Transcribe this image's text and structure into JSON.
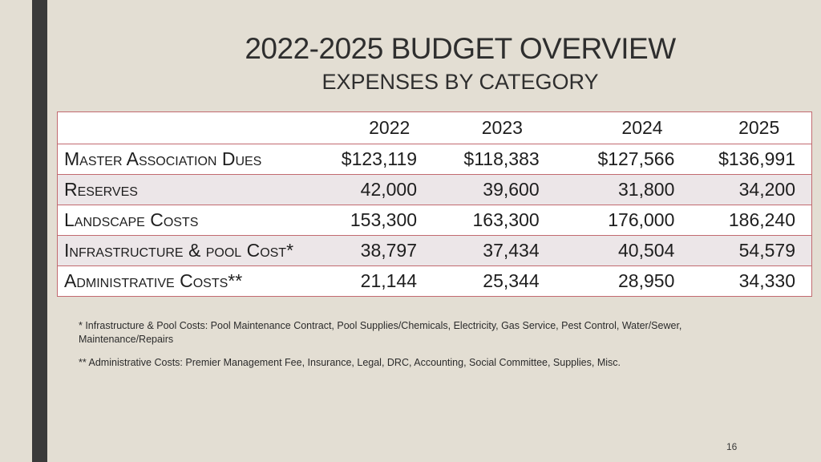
{
  "slide": {
    "title": "2022-2025 BUDGET OVERVIEW",
    "subtitle": "EXPENSES BY CATEGORY",
    "page_number": "16"
  },
  "table": {
    "columns": [
      "",
      "2022",
      "2023",
      "2024",
      "2025"
    ],
    "rows": [
      {
        "label": "Master Association Dues",
        "values": [
          "$123,119",
          "$118,383",
          "$127,566",
          "$136,991"
        ]
      },
      {
        "label": "Reserves",
        "values": [
          "42,000",
          "39,600",
          "31,800",
          "34,200"
        ]
      },
      {
        "label": "Landscape Costs",
        "values": [
          "153,300",
          "163,300",
          "176,000",
          "186,240"
        ]
      },
      {
        "label": "Infrastructure & pool Cost*",
        "values": [
          "38,797",
          "37,434",
          "40,504",
          "54,579"
        ]
      },
      {
        "label": "Administrative Costs**",
        "values": [
          "21,144",
          "25,344",
          "28,950",
          "34,330"
        ]
      }
    ],
    "border_color": "#c26a70"
  },
  "footnotes": {
    "infrastructure": "* Infrastructure & Pool Costs:  Pool Maintenance Contract, Pool Supplies/Chemicals, Electricity, Gas Service, Pest Control, Water/Sewer, Maintenance/Repairs",
    "administrative": "** Administrative Costs:  Premier Management Fee, Insurance, Legal, DRC, Accounting, Social Committee, Supplies, Misc."
  },
  "colors": {
    "background": "#e3ded3",
    "left_bar": "#3a3a3a",
    "row_alt": "#ece6e8"
  }
}
